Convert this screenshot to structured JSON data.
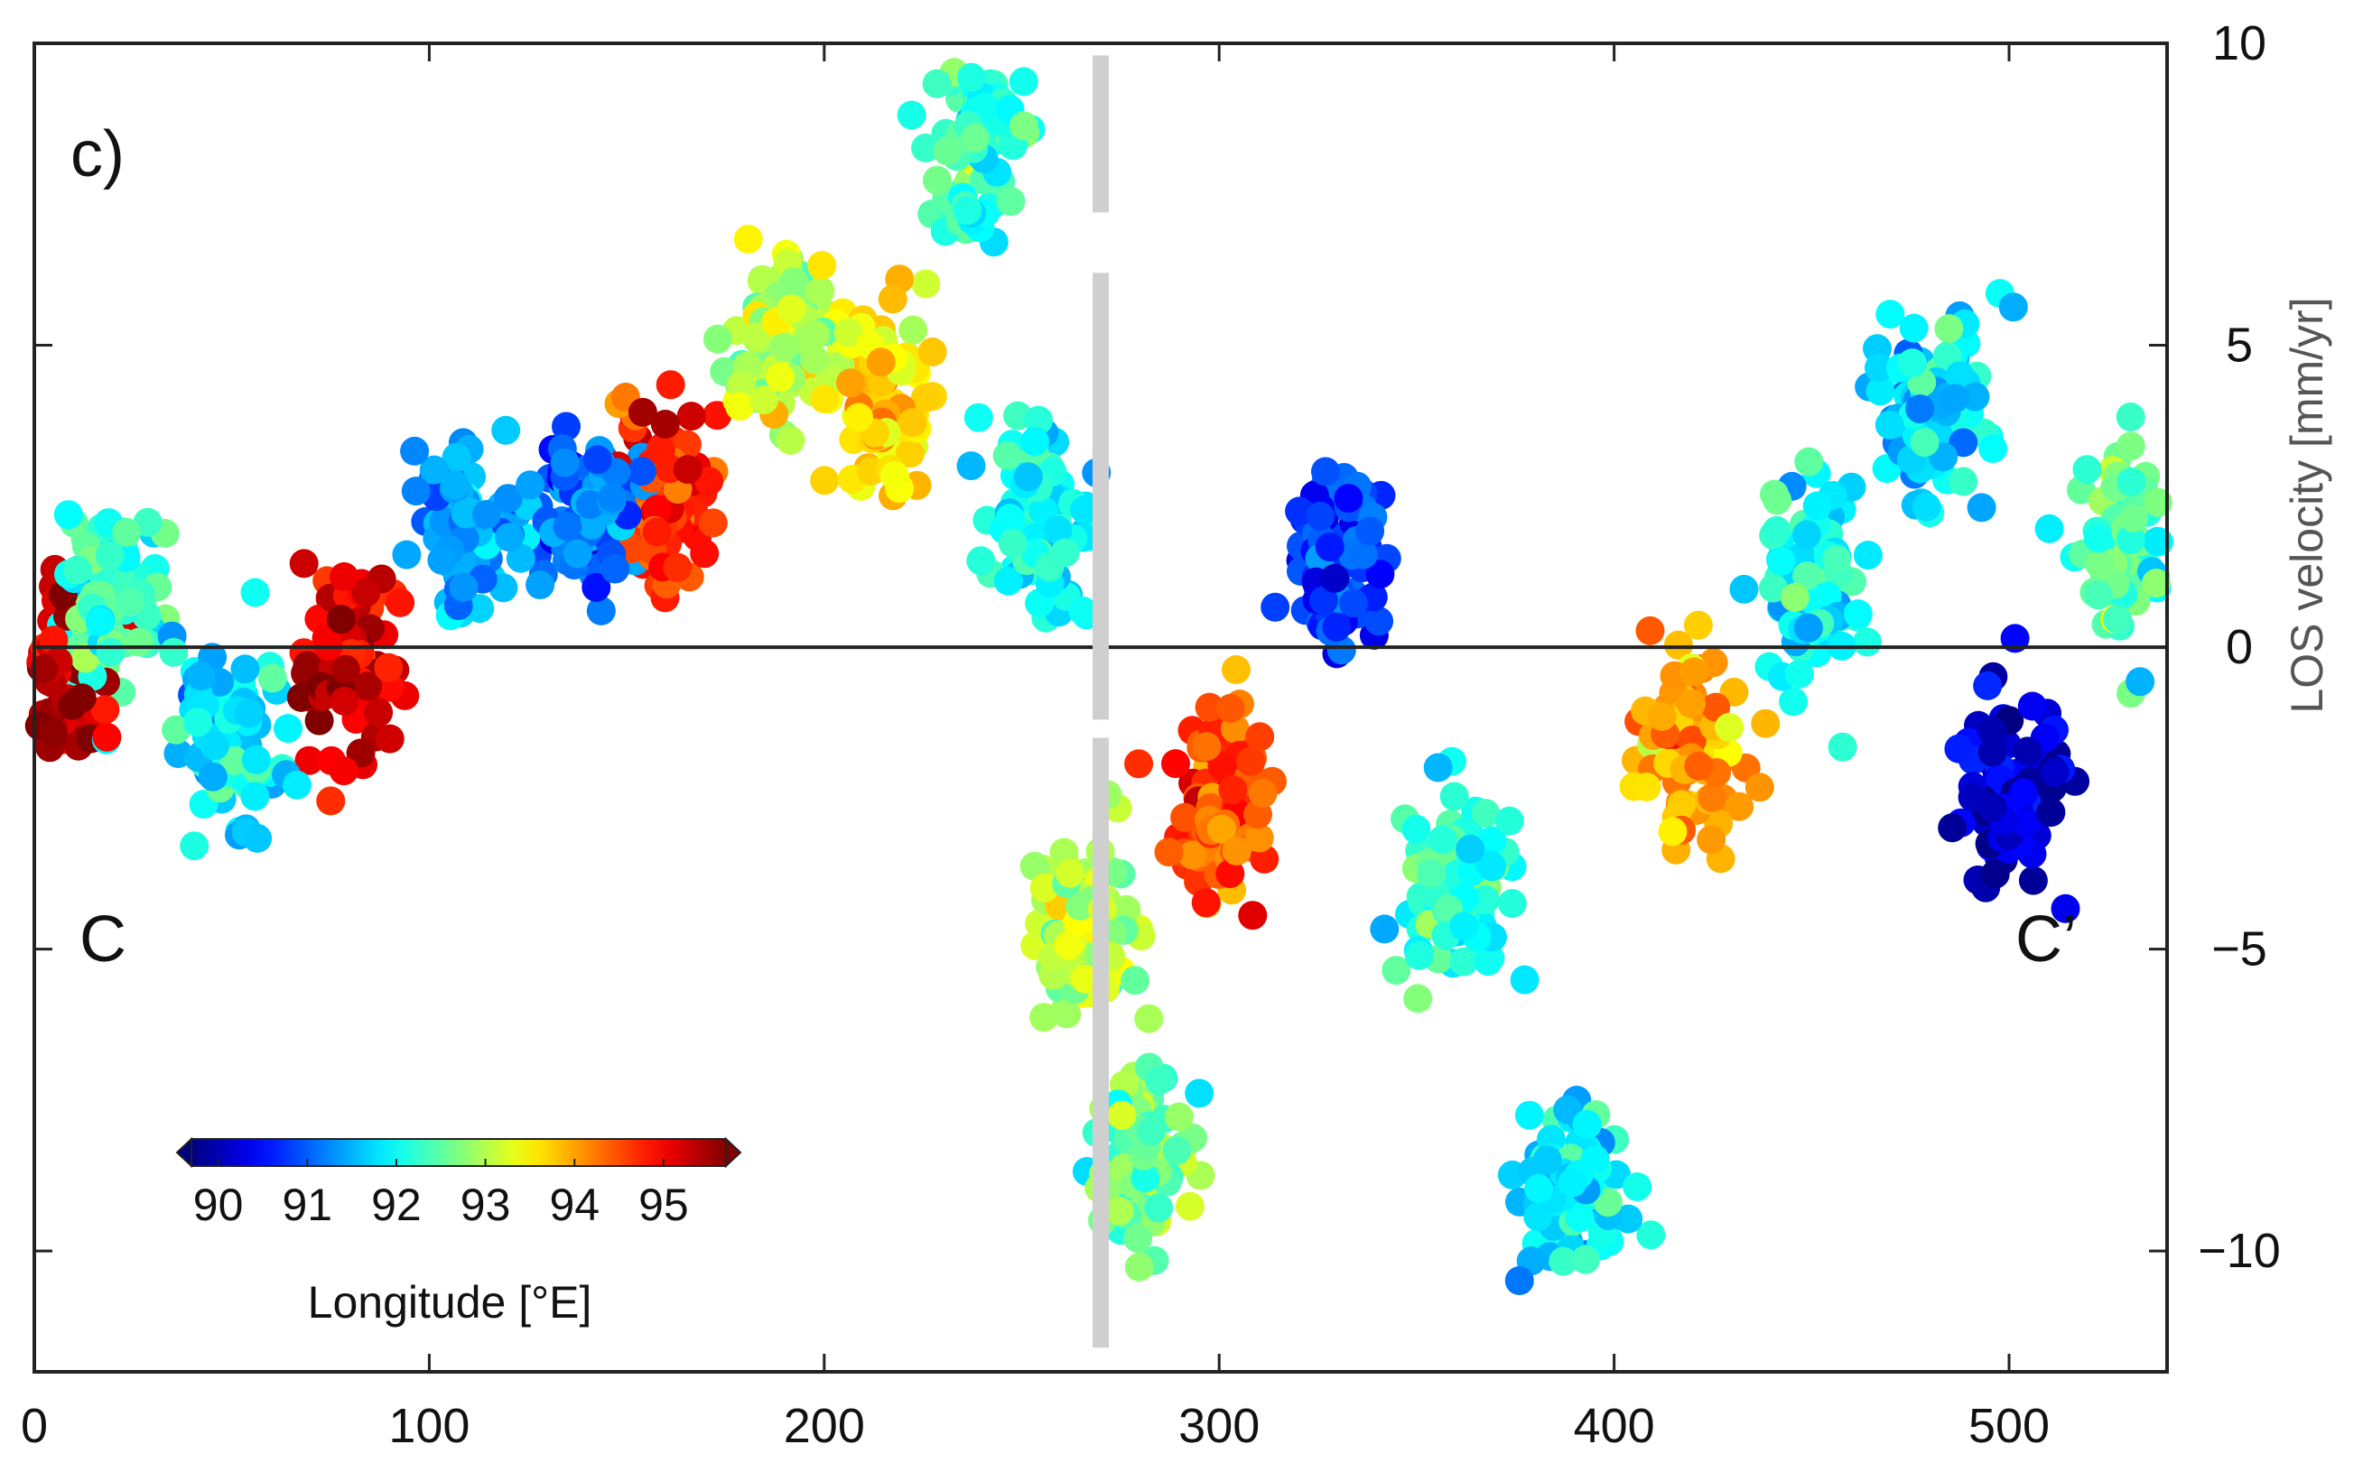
{
  "chart_data": {
    "type": "scatter",
    "panel_label": "c)",
    "profile_start_label": "C",
    "profile_end_label": "C’",
    "xlabel": "",
    "ylabel": "LOS velocity [mm/yr]",
    "xlim": [
      0,
      540
    ],
    "ylim": [
      -12,
      10
    ],
    "x_ticks": [
      0,
      100,
      200,
      300,
      400,
      500
    ],
    "y_ticks": [
      10,
      5,
      0,
      -5,
      -10
    ],
    "y_tick_labels": [
      "10",
      "5",
      "0",
      "−5",
      "−10"
    ],
    "zero_line": 0,
    "fault_marker_x": 270,
    "colorbar": {
      "label": "Longitude [°E]",
      "range": [
        89.7,
        95.7
      ],
      "ticks": [
        90,
        91,
        92,
        93,
        94,
        95
      ],
      "colormap": "jet",
      "colors": [
        "#00007f",
        "#0000ff",
        "#007fff",
        "#00ffff",
        "#7fff7f",
        "#ffff00",
        "#ff7f00",
        "#ff0000",
        "#7f0000"
      ]
    },
    "series_note": "Each point is an InSAR measurement colored by longitude; points sampled along profile C–C'",
    "point_trend": [
      {
        "x": 5,
        "y": -0.5,
        "lon": 95.3
      },
      {
        "x": 20,
        "y": 0.8,
        "lon": 92.3
      },
      {
        "x": 50,
        "y": -1.6,
        "lon": 91.8
      },
      {
        "x": 80,
        "y": -0.3,
        "lon": 95.2
      },
      {
        "x": 110,
        "y": 1.8,
        "lon": 91.4
      },
      {
        "x": 140,
        "y": 2.2,
        "lon": 91.1
      },
      {
        "x": 160,
        "y": 2.5,
        "lon": 94.7
      },
      {
        "x": 190,
        "y": 5.0,
        "lon": 93.0
      },
      {
        "x": 215,
        "y": 4.2,
        "lon": 93.7
      },
      {
        "x": 240,
        "y": 8.5,
        "lon": 92.2
      },
      {
        "x": 255,
        "y": 2.0,
        "lon": 92.0
      },
      {
        "x": 265,
        "y": -4.5,
        "lon": 93.0
      },
      {
        "x": 280,
        "y": -8.5,
        "lon": 92.6
      },
      {
        "x": 300,
        "y": -2.5,
        "lon": 94.5
      },
      {
        "x": 330,
        "y": 1.5,
        "lon": 90.8
      },
      {
        "x": 360,
        "y": -4.0,
        "lon": 92.2
      },
      {
        "x": 390,
        "y": -9.0,
        "lon": 91.9
      },
      {
        "x": 420,
        "y": -1.5,
        "lon": 94.0
      },
      {
        "x": 450,
        "y": 1.0,
        "lon": 92.0
      },
      {
        "x": 480,
        "y": 4.0,
        "lon": 91.8
      },
      {
        "x": 500,
        "y": -2.5,
        "lon": 90.2
      },
      {
        "x": 530,
        "y": 1.8,
        "lon": 92.4
      }
    ]
  }
}
